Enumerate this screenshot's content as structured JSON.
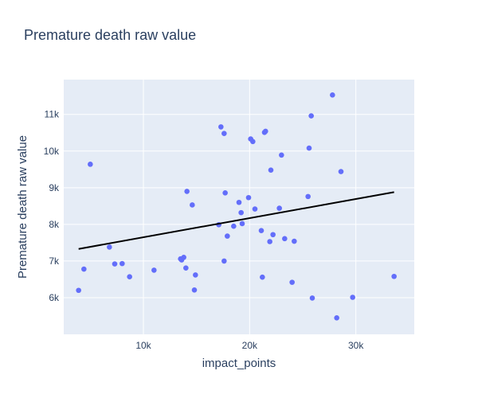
{
  "chart_data": {
    "type": "scatter",
    "title": "Premature death raw value",
    "xlabel": "impact_points",
    "ylabel": "Premature death raw value",
    "xlim": [
      2500,
      35500
    ],
    "ylim": [
      5000,
      11950
    ],
    "x_ticks": [
      10000,
      20000,
      30000
    ],
    "x_tick_labels": [
      "10k",
      "20k",
      "30k"
    ],
    "y_ticks": [
      6000,
      7000,
      8000,
      9000,
      10000,
      11000
    ],
    "y_tick_labels": [
      "6k",
      "7k",
      "8k",
      "9k",
      "10k",
      "11k"
    ],
    "grid": true,
    "legend": "none",
    "colors": {
      "plot_bg": "#e5ecf6",
      "grid": "#ffffff",
      "marker": "#636efa",
      "trendline": "#000000",
      "text": "#2a3f5f"
    },
    "series": [
      {
        "mode": "markers",
        "x": [
          3900,
          4400,
          5000,
          6800,
          7300,
          8000,
          8700,
          11000,
          13500,
          13600,
          13800,
          14000,
          14100,
          14600,
          14800,
          14900,
          17100,
          17300,
          17600,
          17600,
          17700,
          17900,
          18500,
          19000,
          19200,
          19300,
          19900,
          20100,
          20300,
          20500,
          21100,
          21200,
          21400,
          21500,
          21900,
          22000,
          22200,
          22800,
          23000,
          23300,
          24000,
          24200,
          25500,
          25600,
          25800,
          25900,
          27800,
          28200,
          28600,
          29700,
          33600
        ],
        "y": [
          6200,
          6780,
          9640,
          7380,
          6920,
          6930,
          6570,
          6750,
          7060,
          7030,
          7100,
          6810,
          8900,
          8530,
          6210,
          6620,
          7990,
          10660,
          7000,
          10480,
          8860,
          7680,
          7950,
          8600,
          8320,
          8020,
          8730,
          10330,
          10260,
          8420,
          7830,
          6560,
          10510,
          10540,
          7530,
          9480,
          7720,
          8440,
          9890,
          7610,
          6420,
          7540,
          8760,
          10080,
          10960,
          5990,
          11530,
          5450,
          9440,
          6010,
          6580
        ]
      },
      {
        "mode": "lines",
        "name": "trendline",
        "x": [
          3900,
          33600
        ],
        "y": [
          7330,
          8880
        ]
      }
    ]
  }
}
